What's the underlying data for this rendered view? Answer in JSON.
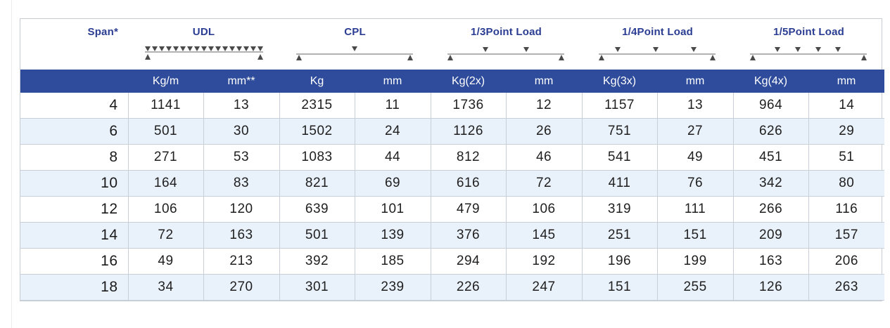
{
  "table": {
    "span_label": "Span*",
    "groups": [
      {
        "label": "UDL",
        "diagram": "udl-icon"
      },
      {
        "label": "CPL",
        "diagram": "cpl-icon"
      },
      {
        "label": "1/3Point Load",
        "diagram": "third-point-load-icon"
      },
      {
        "label": "1/4Point Load",
        "diagram": "quarter-point-load-icon"
      },
      {
        "label": "1/5Point Load",
        "diagram": "fifth-point-load-icon"
      }
    ],
    "units": [
      "",
      "Kg/m",
      "mm**",
      "Kg",
      "mm",
      "Kg(2x)",
      "mm",
      "Kg(3x)",
      "mm",
      "Kg(4x)",
      "mm"
    ],
    "rows": [
      [
        "4",
        "1141",
        "13",
        "2315",
        "11",
        "1736",
        "12",
        "1157",
        "13",
        "964",
        "14"
      ],
      [
        "6",
        "501",
        "30",
        "1502",
        "24",
        "1126",
        "26",
        "751",
        "27",
        "626",
        "29"
      ],
      [
        "8",
        "271",
        "53",
        "1083",
        "44",
        "812",
        "46",
        "541",
        "49",
        "451",
        "51"
      ],
      [
        "10",
        "164",
        "83",
        "821",
        "69",
        "616",
        "72",
        "411",
        "76",
        "342",
        "80"
      ],
      [
        "12",
        "106",
        "120",
        "639",
        "101",
        "479",
        "106",
        "319",
        "111",
        "266",
        "116"
      ],
      [
        "14",
        "72",
        "163",
        "501",
        "139",
        "376",
        "145",
        "251",
        "151",
        "209",
        "157"
      ],
      [
        "16",
        "49",
        "213",
        "392",
        "185",
        "294",
        "192",
        "196",
        "199",
        "163",
        "206"
      ],
      [
        "18",
        "34",
        "270",
        "301",
        "239",
        "226",
        "247",
        "151",
        "255",
        "126",
        "263"
      ]
    ],
    "colors": {
      "header_blue": "#2e4c9b",
      "label_blue": "#2b3d92",
      "alt_row": "#e9f1fb"
    }
  }
}
